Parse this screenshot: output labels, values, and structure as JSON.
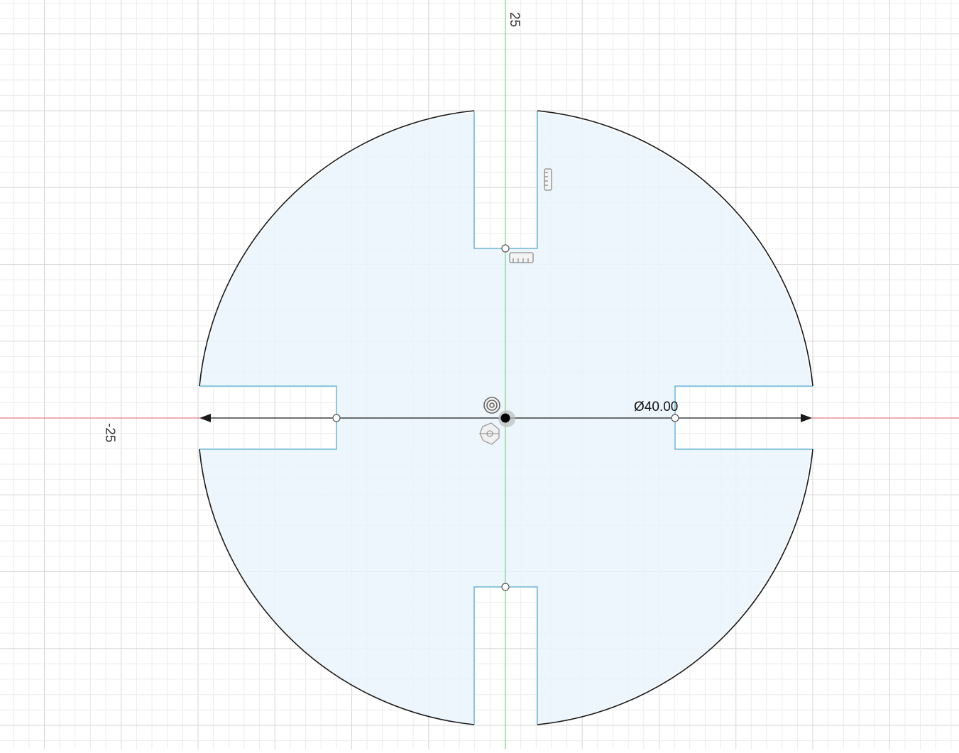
{
  "axis_labels": {
    "y_top": "25",
    "x_left": "-25"
  },
  "dimension": {
    "text": "Ø40.00"
  },
  "colors": {
    "background": "#ffffff",
    "grid_minor": "#ececec",
    "grid_major": "#d6d6d6",
    "x_axis": "#e0606a",
    "y_axis": "#5cc85c",
    "profile_fill": "#e9f4fb",
    "profile_edge": "#6cb7d9",
    "circle_outline": "#1a1a1a",
    "dimension_line": "#1a1a1a",
    "constraint_icon": "#8a8a8a"
  },
  "icons": [
    "horizontal-constraint-icon",
    "vertical-constraint-icon",
    "concentric-constraint-icon",
    "fix-constraint-icon",
    "sketch-origin-point-icon",
    "sketch-point-icon"
  ]
}
